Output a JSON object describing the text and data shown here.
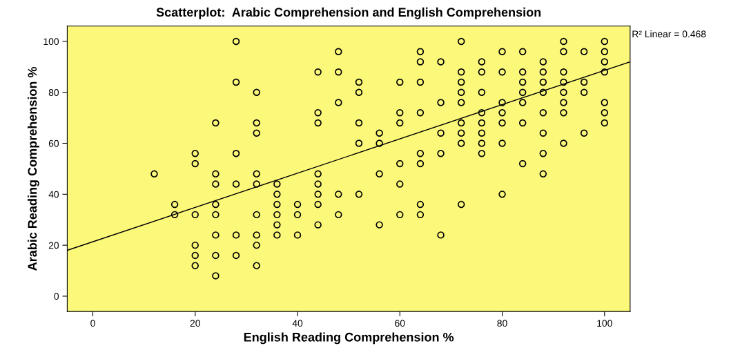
{
  "chart_data": {
    "type": "scatter",
    "title": "Scatterplot:  Arabic Comprehension and English Comprehension",
    "xlabel": "English Reading Comprehension %",
    "ylabel": "Arabic Reading Comprehension %",
    "annotations": [
      "R² Linear = 0.468"
    ],
    "xlim": [
      -5,
      105
    ],
    "ylim": [
      -6,
      106
    ],
    "xticks": [
      0,
      20,
      40,
      60,
      80,
      100
    ],
    "yticks": [
      0,
      20,
      40,
      60,
      80,
      100
    ],
    "grid": false,
    "legend": false,
    "marker": "circle",
    "series": [
      {
        "color": "#000000",
        "x": [
          12,
          16,
          16,
          20,
          20,
          20,
          20,
          20,
          20,
          24,
          24,
          24,
          24,
          24,
          24,
          24,
          24,
          28,
          28,
          28,
          28,
          28,
          28,
          32,
          32,
          32,
          32,
          32,
          32,
          32,
          32,
          32,
          36,
          36,
          36,
          36,
          36,
          36,
          40,
          40,
          40,
          44,
          44,
          44,
          44,
          44,
          44,
          44,
          44,
          48,
          48,
          48,
          48,
          48,
          52,
          52,
          52,
          52,
          52,
          56,
          56,
          56,
          56,
          60,
          60,
          60,
          60,
          60,
          60,
          64,
          64,
          64,
          64,
          64,
          64,
          64,
          64,
          68,
          68,
          68,
          68,
          68,
          72,
          72,
          72,
          72,
          72,
          72,
          72,
          72,
          72,
          76,
          76,
          76,
          76,
          76,
          76,
          76,
          76,
          80,
          80,
          80,
          80,
          80,
          80,
          80,
          84,
          84,
          84,
          84,
          84,
          84,
          84,
          88,
          88,
          88,
          88,
          88,
          88,
          88,
          88,
          92,
          92,
          92,
          92,
          92,
          92,
          92,
          92,
          96,
          96,
          96,
          96,
          100,
          100,
          100,
          100,
          100,
          100,
          100
        ],
        "values": [
          48,
          36,
          32,
          56,
          52,
          32,
          20,
          16,
          12,
          68,
          48,
          44,
          36,
          32,
          24,
          16,
          8,
          100,
          84,
          56,
          44,
          24,
          16,
          80,
          68,
          64,
          48,
          44,
          32,
          24,
          20,
          12,
          44,
          40,
          36,
          32,
          28,
          24,
          36,
          32,
          24,
          88,
          72,
          68,
          48,
          44,
          40,
          36,
          28,
          96,
          88,
          76,
          40,
          32,
          84,
          80,
          68,
          60,
          40,
          64,
          60,
          48,
          28,
          84,
          72,
          68,
          52,
          44,
          32,
          96,
          92,
          84,
          72,
          56,
          52,
          36,
          32,
          92,
          76,
          64,
          56,
          24,
          100,
          88,
          84,
          80,
          76,
          68,
          64,
          60,
          36,
          92,
          88,
          80,
          72,
          68,
          64,
          60,
          56,
          96,
          88,
          76,
          72,
          68,
          60,
          40,
          96,
          88,
          84,
          80,
          76,
          68,
          52,
          92,
          88,
          84,
          80,
          72,
          64,
          56,
          48,
          100,
          96,
          88,
          84,
          80,
          76,
          72,
          60,
          96,
          84,
          80,
          64,
          100,
          96,
          92,
          88,
          76,
          72,
          68
        ]
      },
      {
        "type": "line",
        "color": "#000000",
        "x": [
          -5,
          105
        ],
        "values": [
          18,
          92
        ],
        "marker": "none",
        "line_style": "solid"
      }
    ]
  }
}
